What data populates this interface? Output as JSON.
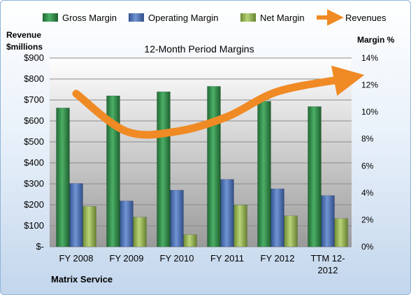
{
  "chart_data": {
    "type": "bar",
    "title": "12-Month Period Margins",
    "company": "Matrix Service",
    "left_axis_label": [
      "Revenue",
      "$millions"
    ],
    "right_axis_label": "Margin %",
    "left_ylim": [
      0,
      900
    ],
    "left_ticks": [
      0,
      100,
      200,
      300,
      400,
      500,
      600,
      700,
      800,
      900
    ],
    "left_tick_labels": [
      "$-",
      "$100",
      "$200",
      "$300",
      "$400",
      "$500",
      "$600",
      "$700",
      "$800",
      "$900"
    ],
    "right_ylim": [
      0,
      14
    ],
    "right_ticks": [
      0,
      2,
      4,
      6,
      8,
      10,
      12,
      14
    ],
    "right_tick_labels": [
      "0%",
      "2%",
      "4%",
      "6%",
      "8%",
      "10%",
      "12%",
      "14%"
    ],
    "categories": [
      [
        "FY 2008"
      ],
      [
        "FY 2009"
      ],
      [
        "FY 2010"
      ],
      [
        "FY 2011"
      ],
      [
        "FY 2012"
      ],
      [
        "TTM 12-",
        "2012"
      ]
    ],
    "series": [
      {
        "name": "Gross Margin",
        "axis": "right",
        "color": "#2e8b46",
        "values": [
          10.3,
          11.2,
          11.5,
          11.9,
          10.8,
          10.4
        ]
      },
      {
        "name": "Operating Margin",
        "axis": "right",
        "color": "#4f71b5",
        "values": [
          4.7,
          3.4,
          4.2,
          5.0,
          4.3,
          3.8
        ]
      },
      {
        "name": "Net Margin",
        "axis": "right",
        "color": "#98b954",
        "values": [
          3.0,
          2.2,
          0.9,
          3.1,
          2.3,
          2.1
        ]
      }
    ],
    "revenue_series": {
      "name": "Revenues",
      "axis": "left",
      "color": "#f08a24",
      "values": [
        730,
        550,
        550,
        620,
        740,
        800
      ]
    },
    "grid": true,
    "legend_position": "top"
  }
}
